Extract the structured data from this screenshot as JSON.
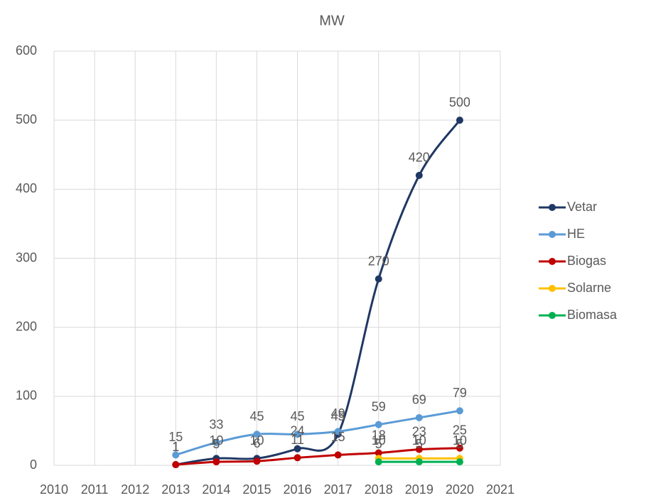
{
  "chart_data": {
    "type": "line",
    "title": "MW",
    "x": [
      2013,
      2014,
      2015,
      2016,
      2017,
      2018,
      2019,
      2020
    ],
    "series": [
      {
        "name": "Vetar",
        "color": "#203864",
        "values": [
          1,
          10,
          10,
          24,
          45,
          270,
          420,
          500
        ]
      },
      {
        "name": "HE",
        "color": "#5b9bd5",
        "values": [
          15,
          33,
          45,
          45,
          49,
          59,
          69,
          79
        ]
      },
      {
        "name": "Biogas",
        "color": "#c00000",
        "values": [
          1,
          5,
          6,
          11,
          15,
          18,
          23,
          25
        ]
      },
      {
        "name": "Solarne",
        "color": "#ffc000",
        "values": [
          null,
          null,
          null,
          null,
          null,
          10,
          10,
          10
        ]
      },
      {
        "name": "Biomasa",
        "color": "#00b050",
        "values": [
          null,
          null,
          null,
          null,
          null,
          5,
          5,
          5
        ]
      }
    ],
    "xlim": [
      2010,
      2021
    ],
    "xticks": [
      2010,
      2011,
      2012,
      2013,
      2014,
      2015,
      2016,
      2017,
      2018,
      2019,
      2020,
      2021
    ],
    "ylim": [
      0,
      600
    ],
    "yticks": [
      0,
      100,
      200,
      300,
      400,
      500,
      600
    ],
    "grid": true,
    "smooth": true,
    "legend": "right"
  }
}
